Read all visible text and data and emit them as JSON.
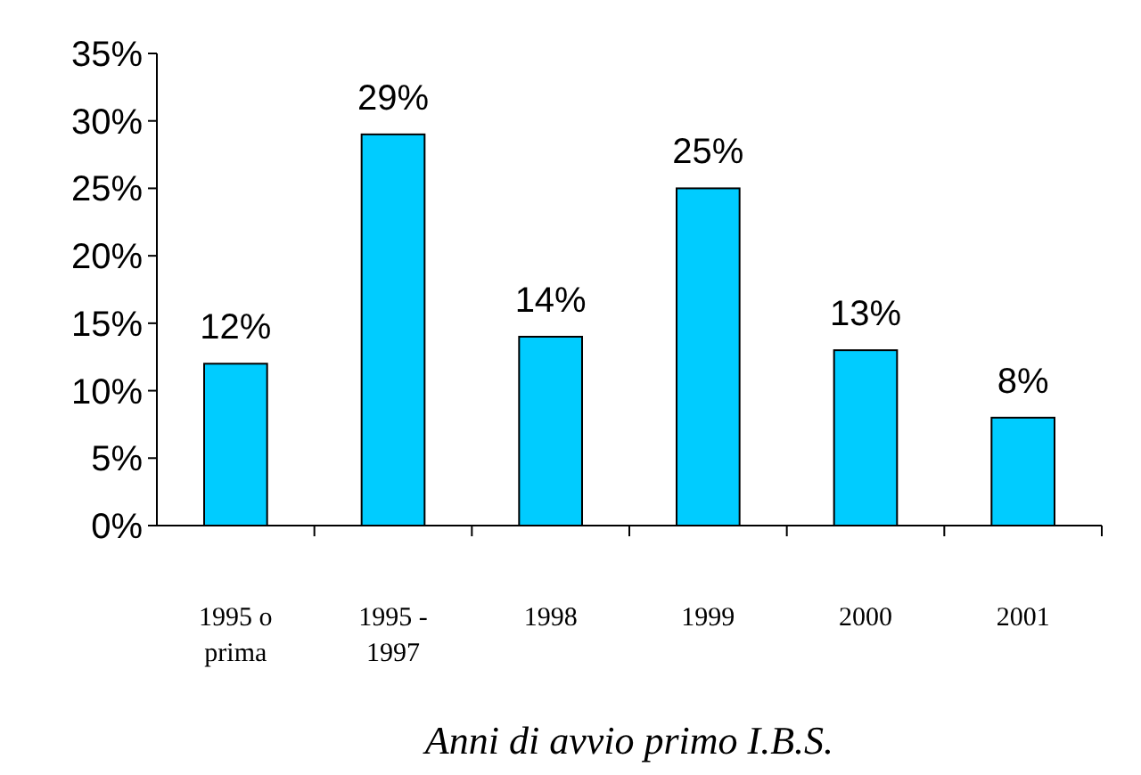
{
  "chart_data": {
    "type": "bar",
    "xlabel": "Anni di avvio primo I.B.S.",
    "categories": [
      "1995 o prima",
      "1995 - 1997",
      "1998",
      "1999",
      "2000",
      "2001"
    ],
    "values": [
      12,
      29,
      14,
      25,
      13,
      8
    ],
    "value_labels": [
      "12%",
      "29%",
      "14%",
      "25%",
      "13%",
      "8%"
    ],
    "color": "#00ccff",
    "ylim": [
      0,
      35
    ],
    "yticks": [
      {
        "value": 0,
        "label": "0%"
      },
      {
        "value": 5,
        "label": "5%"
      },
      {
        "value": 10,
        "label": "10%"
      },
      {
        "value": 15,
        "label": "15%"
      },
      {
        "value": 20,
        "label": "20%"
      },
      {
        "value": 25,
        "label": "25%"
      },
      {
        "value": 30,
        "label": "30%"
      },
      {
        "value": 35,
        "label": "35%"
      }
    ],
    "grid": false
  }
}
